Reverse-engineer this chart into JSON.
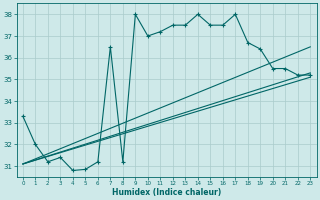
{
  "title": "",
  "xlabel": "Humidex (Indice chaleur)",
  "bg_color": "#cee9e9",
  "grid_color": "#aacccc",
  "line_color": "#006666",
  "xlim": [
    -0.5,
    23.5
  ],
  "ylim": [
    30.5,
    38.5
  ],
  "xticks": [
    0,
    1,
    2,
    3,
    4,
    5,
    6,
    7,
    8,
    9,
    10,
    11,
    12,
    13,
    14,
    15,
    16,
    17,
    18,
    19,
    20,
    21,
    22,
    23
  ],
  "yticks": [
    31,
    32,
    33,
    34,
    35,
    36,
    37,
    38
  ],
  "series1_x": [
    0,
    1,
    2,
    3,
    4,
    5,
    6,
    7,
    8,
    9,
    10,
    11,
    12,
    13,
    14,
    15,
    16,
    17,
    18,
    19,
    20,
    21,
    22,
    23
  ],
  "series1_y": [
    33.3,
    32.0,
    31.2,
    31.4,
    30.8,
    30.85,
    31.2,
    36.5,
    31.2,
    38.0,
    37.0,
    37.2,
    37.5,
    37.5,
    38.0,
    37.5,
    37.5,
    38.0,
    36.7,
    36.4,
    35.5,
    35.5,
    35.2,
    35.2
  ],
  "line2_x": [
    0,
    23
  ],
  "line2_y": [
    31.1,
    36.5
  ],
  "line3_x": [
    0,
    23
  ],
  "line3_y": [
    31.1,
    35.3
  ],
  "line4_x": [
    0,
    23
  ],
  "line4_y": [
    31.1,
    35.1
  ],
  "marker_x": [
    0,
    1,
    2,
    3,
    4,
    5,
    6,
    7,
    8,
    9,
    10,
    11,
    12,
    13,
    14,
    15,
    16,
    17,
    18,
    19,
    20,
    21,
    22,
    23
  ],
  "marker_y": [
    33.3,
    32.0,
    31.2,
    31.4,
    30.8,
    30.85,
    31.2,
    36.5,
    31.2,
    38.0,
    37.0,
    37.2,
    37.5,
    37.5,
    38.0,
    37.5,
    37.5,
    38.0,
    36.7,
    36.4,
    35.5,
    35.5,
    35.2,
    35.2
  ]
}
